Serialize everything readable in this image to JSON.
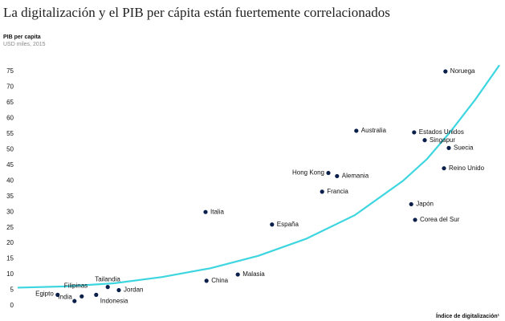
{
  "chart_data": {
    "type": "scatter",
    "title": "La digitalización y el PIB per cápita están fuertemente correlacionados",
    "y_label": "PIB per capita",
    "y_sublabel": "USD miles, 2015",
    "x_label": "Índice de digitalización¹",
    "labels": [
      "Noruega",
      "Australia",
      "Estados Unidos",
      "Singapur",
      "Suecia",
      "Reino Unido",
      "Hong Kong",
      "Alemania",
      "Francia",
      "Japón",
      "Corea del Sur",
      "Italia",
      "España",
      "Malasia",
      "China",
      "Jordan",
      "Tailandia",
      "Filipinas",
      "Indonesia",
      "India",
      "Egipto"
    ],
    "x": [
      88.8,
      70.3,
      82.3,
      84.5,
      89.5,
      88.5,
      64.5,
      66.3,
      63.2,
      81.7,
      82.5,
      39,
      52.8,
      45.7,
      39.2,
      21,
      18.7,
      13.3,
      16.3,
      11.8,
      8.3
    ],
    "values": [
      75,
      56,
      55.5,
      53,
      50.5,
      44,
      42.5,
      41.5,
      36.5,
      32.5,
      27.5,
      30,
      26,
      10,
      8,
      5,
      6,
      3,
      3.5,
      1.5,
      3.5
    ],
    "color": "#0b1f4b",
    "trend": {
      "x": [
        0,
        10,
        20,
        30,
        40,
        50,
        60,
        70,
        80,
        85,
        90,
        95,
        100
      ],
      "values": [
        5.8,
        6.2,
        7.2,
        9.2,
        12,
        16,
        21.5,
        29,
        40,
        47,
        56,
        66,
        77
      ],
      "color": "#3dd6e0"
    },
    "xlim": [
      0,
      100
    ],
    "ylim": [
      0,
      75
    ],
    "yticks": [
      0,
      5,
      10,
      15,
      20,
      25,
      30,
      35,
      40,
      45,
      50,
      55,
      60,
      65,
      70,
      75
    ]
  }
}
